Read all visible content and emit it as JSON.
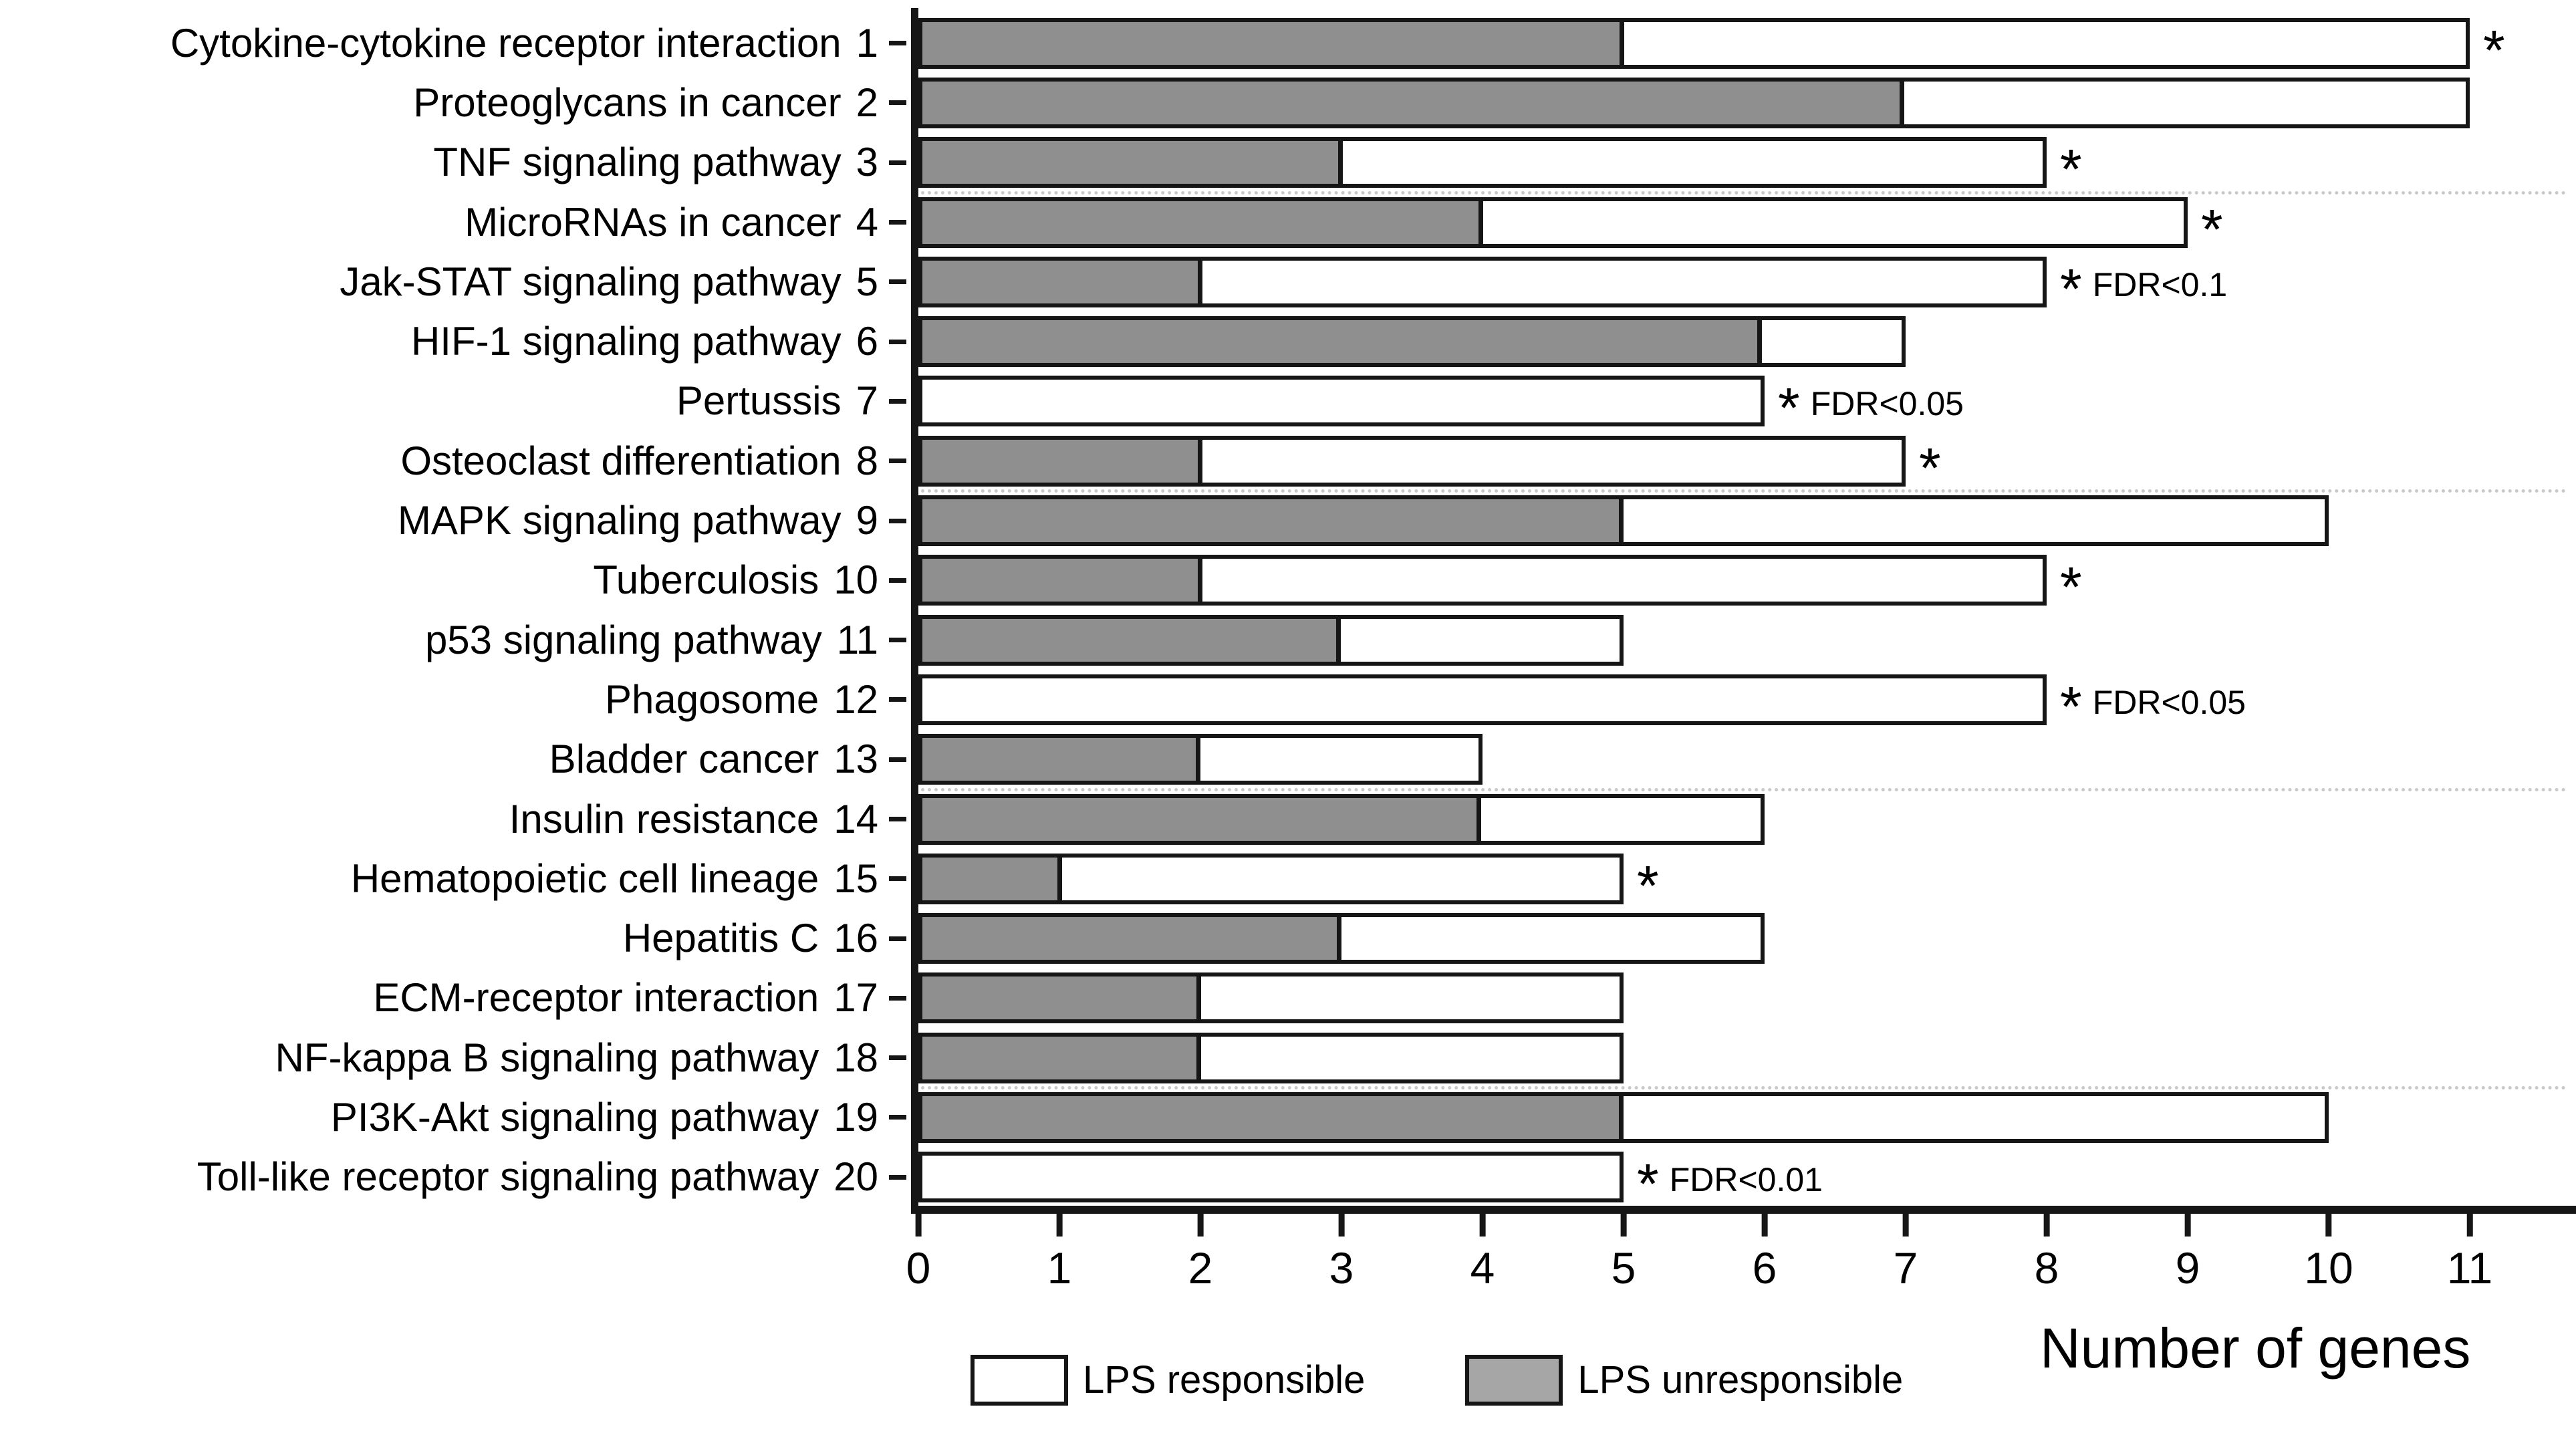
{
  "figure": {
    "xlabel": "Number of genes",
    "legend": {
      "items": [
        {
          "label": "LPS responsible",
          "swatch": "#ffffff"
        },
        {
          "label": "LPS unresponsible",
          "swatch": "#a6a6a6"
        }
      ]
    }
  },
  "chart_data": {
    "type": "bar",
    "orientation": "horizontal",
    "stacked": true,
    "title": "",
    "xlabel": "Number of genes",
    "ylabel": "",
    "xlim": [
      0,
      11
    ],
    "x_ticks": [
      "0",
      "1",
      "2",
      "3",
      "4",
      "5",
      "6",
      "7",
      "8",
      "9",
      "10",
      "11"
    ],
    "grid": "faint dotted horizontal separators",
    "gridline_after_rows": [
      3,
      8,
      13,
      18
    ],
    "legend_position": "bottom",
    "axis_color": "#161616",
    "categories": [
      "Cytokine-cytokine receptor interaction",
      "Proteoglycans in cancer",
      "TNF signaling pathway",
      "MicroRNAs in cancer",
      "Jak-STAT signaling pathway",
      "HIF-1 signaling pathway",
      "Pertussis",
      "Osteoclast differentiation",
      "MAPK signaling pathway",
      "Tuberculosis",
      "p53 signaling pathway",
      "Phagosome",
      "Bladder cancer",
      "Insulin resistance",
      "Hematopoietic cell lineage",
      "Hepatitis C",
      "ECM-receptor interaction",
      "NF-kappa B signaling pathway",
      "PI3K-Akt signaling pathway",
      "Toll-like receptor signaling pathway"
    ],
    "row_numbers": [
      "1",
      "2",
      "3",
      "4",
      "5",
      "6",
      "7",
      "8",
      "9",
      "10",
      "11",
      "12",
      "13",
      "14",
      "15",
      "16",
      "17",
      "18",
      "19",
      "20"
    ],
    "series": [
      {
        "name": "LPS unresponsible",
        "color": "#8f8f8f",
        "values": [
          5,
          7,
          3,
          4,
          2,
          6,
          0,
          2,
          5,
          2,
          3,
          0,
          2,
          4,
          1,
          3,
          2,
          2,
          5,
          0
        ]
      },
      {
        "name": "LPS responsible",
        "color": "#ffffff",
        "values": [
          6,
          4,
          5,
          5,
          6,
          1,
          6,
          5,
          5,
          6,
          2,
          8,
          2,
          2,
          4,
          3,
          3,
          3,
          5,
          5
        ]
      }
    ],
    "totals": [
      11,
      11,
      8,
      9,
      8,
      7,
      6,
      7,
      10,
      8,
      5,
      8,
      4,
      6,
      5,
      6,
      5,
      5,
      10,
      5
    ],
    "stars": [
      "*",
      "",
      "*",
      "*",
      "*",
      "",
      "*",
      "*",
      "",
      "*",
      "",
      "*",
      "",
      "",
      "*",
      "",
      "",
      "",
      "",
      "*"
    ],
    "fdr_labels": [
      "",
      "",
      "",
      "",
      "FDR<0.1",
      "",
      "FDR<0.05",
      "",
      "",
      "",
      "",
      "FDR<0.05",
      "",
      "",
      "",
      "",
      "",
      "",
      "",
      "FDR<0.01"
    ]
  }
}
